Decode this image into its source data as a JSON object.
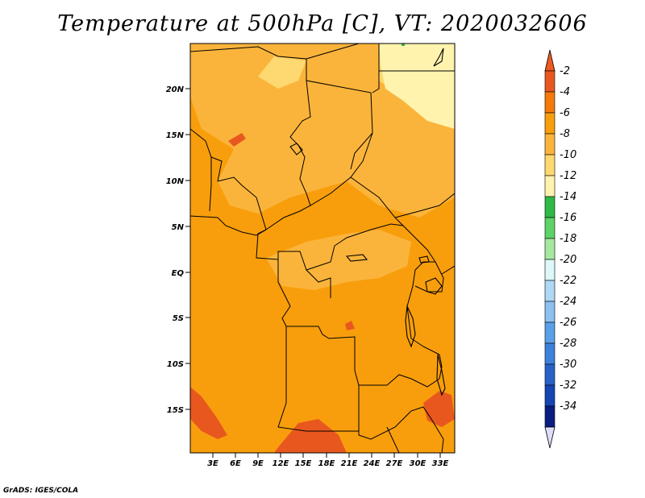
{
  "title": "Temperature at 500hPa [C], VT: 2020032606",
  "credit": "GrADS: IGES/COLA",
  "lat_labels": [
    "20N",
    "15N",
    "10N",
    "5N",
    "EQ",
    "5S",
    "10S",
    "15S"
  ],
  "lon_labels": [
    "3E",
    "6E",
    "9E",
    "12E",
    "15E",
    "18E",
    "21E",
    "24E",
    "27E",
    "30E",
    "33E"
  ],
  "colorbar": {
    "labels": [
      "-2",
      "-4",
      "-6",
      "-8",
      "-10",
      "-12",
      "-14",
      "-16",
      "-18",
      "-20",
      "-22",
      "-24",
      "-26",
      "-28",
      "-30",
      "-32",
      "-34"
    ],
    "colors": [
      "#e8581e",
      "#f57a0a",
      "#f89e0c",
      "#fbb43b",
      "#fed870",
      "#fff3ae",
      "#2fb946",
      "#5dd266",
      "#a7e8a0",
      "#dcf8f8",
      "#afd8f5",
      "#8cc0f0",
      "#5aa0e8",
      "#3c82dc",
      "#2862c8",
      "#1446b4",
      "#0a1e82"
    ],
    "top_arrow_color": "#ef5a1e",
    "bottom_arrow_color": "#dedefa"
  },
  "palette": {
    "orange_base": "#f89e0c",
    "orange_light": "#fbb43b",
    "yellow": "#fed870",
    "pale_yellow": "#fff3ae",
    "red_orange": "#e8581e",
    "green": "#2fb946"
  }
}
